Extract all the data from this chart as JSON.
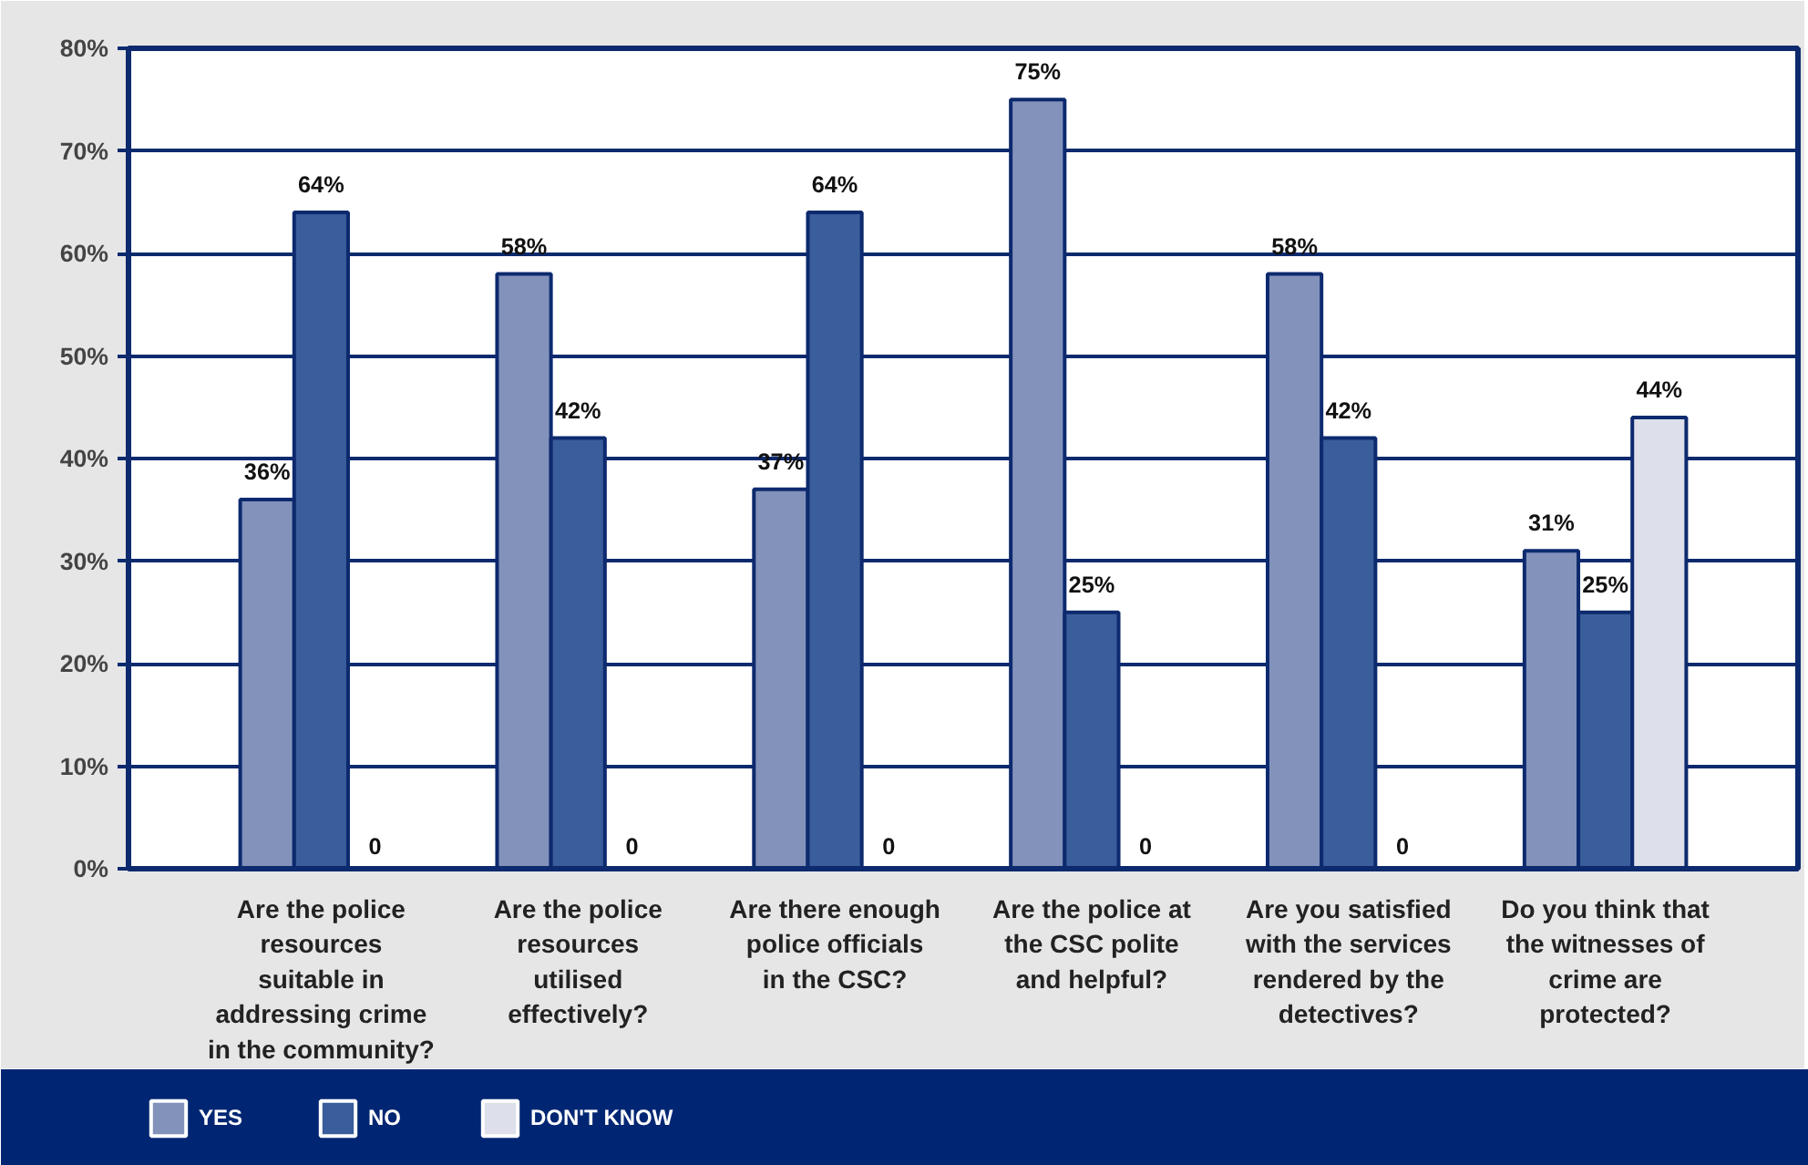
{
  "chart_data": {
    "type": "bar",
    "categories": [
      "Are the police resources suitable in addressing crime in the community?",
      "Are the police resources utilised effectively?",
      "Are there enough police officials in the CSC?",
      "Are the police at the CSC polite and helpful?",
      "Are you satisfied with the services rendered by the detectives?",
      "Do you think that the witnesses of crime are protected?"
    ],
    "series": [
      {
        "name": "YES",
        "color": "#8292bb",
        "values": [
          36,
          58,
          37,
          75,
          58,
          31
        ],
        "value_labels": [
          "36%",
          "58%",
          "37%",
          "75%",
          "58%",
          "31%"
        ]
      },
      {
        "name": "NO",
        "color": "#3a5d9b",
        "values": [
          64,
          42,
          64,
          25,
          42,
          25
        ],
        "value_labels": [
          "64%",
          "42%",
          "64%",
          "25%",
          "42%",
          "25%"
        ]
      },
      {
        "name": "DON'T KNOW",
        "color": "#dde0ea",
        "values": [
          0,
          0,
          0,
          0,
          0,
          44
        ],
        "value_labels": [
          "0",
          "0",
          "0",
          "0",
          "0",
          "44%"
        ]
      }
    ],
    "ylim": [
      0,
      80
    ],
    "yticks": [
      {
        "value": 0,
        "label": "0%"
      },
      {
        "value": 10,
        "label": "10%"
      },
      {
        "value": 20,
        "label": "20%"
      },
      {
        "value": 30,
        "label": "30%"
      },
      {
        "value": 40,
        "label": "40%"
      },
      {
        "value": 50,
        "label": "50%"
      },
      {
        "value": 60,
        "label": "60%"
      },
      {
        "value": 70,
        "label": "70%"
      },
      {
        "value": 80,
        "label": "80%"
      }
    ],
    "grid": "y",
    "legend": "bottom"
  }
}
